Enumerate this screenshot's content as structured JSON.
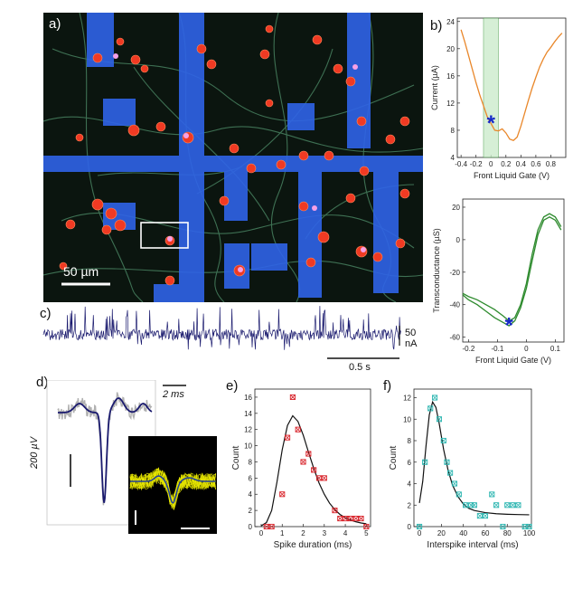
{
  "panels": {
    "a": {
      "label": "a)",
      "scalebar_text": "50 µm"
    },
    "b": {
      "label": "b)"
    },
    "c": {
      "label": "c)",
      "vscale_text": "50 nA",
      "hscale_text": "0.5 s"
    },
    "d": {
      "label": "d)",
      "time_scale_text": "2 ms",
      "voltage_scale_text": "200 µV"
    },
    "e": {
      "label": "e)"
    },
    "f": {
      "label": "f)"
    }
  },
  "colors": {
    "micrograph_bg": "#0b150f",
    "electrode_blue": "#2f63e8",
    "cell_red": "#f03a23",
    "neurite_green": "#4f8f6a",
    "iv_orange": "#e9872a",
    "gate_shade": "#cdeccd",
    "transconductance_green": "#2e8b2e",
    "marker_blue": "#1628c8",
    "trace_navy": "#1a1a6e",
    "scatter_red": "#d8232a",
    "scatter_teal": "#2bb5b0",
    "overlay_yellow": "#e6e600"
  },
  "chart_data": [
    {
      "id": "b-top",
      "type": "line",
      "xlabel": "Front Liquid Gate (V)",
      "ylabel": "Current (µA)",
      "xlim": [
        -0.45,
        1.0
      ],
      "ylim": [
        4,
        24.5
      ],
      "xticks": [
        -0.4,
        -0.2,
        0.0,
        0.2,
        0.4,
        0.6,
        0.8
      ],
      "yticks": [
        4,
        8,
        12,
        16,
        20,
        24
      ],
      "highlight_x": [
        -0.1,
        0.1
      ],
      "marker": {
        "x": 0.0,
        "y": 9.2,
        "symbol": "*"
      },
      "series": [
        {
          "x": [
            -0.4,
            -0.35,
            -0.3,
            -0.25,
            -0.2,
            -0.15,
            -0.1,
            -0.05,
            0.0,
            0.05,
            0.1,
            0.15,
            0.2,
            0.25,
            0.3,
            0.35,
            0.4,
            0.45,
            0.5,
            0.55,
            0.6,
            0.65,
            0.7,
            0.75,
            0.8,
            0.85,
            0.9,
            0.95
          ],
          "y": [
            22.8,
            21.0,
            19.0,
            17.0,
            15.0,
            13.2,
            11.6,
            10.0,
            9.0,
            8.0,
            7.9,
            8.2,
            7.6,
            6.7,
            6.5,
            7.0,
            8.6,
            10.5,
            12.4,
            14.2,
            15.8,
            17.3,
            18.5,
            19.5,
            20.2,
            21.0,
            21.7,
            22.3
          ]
        }
      ]
    },
    {
      "id": "b-bottom",
      "type": "line",
      "xlabel": "Front Liquid Gate (V)",
      "ylabel": "Transconductance (µS)",
      "xlim": [
        -0.22,
        0.13
      ],
      "ylim": [
        -63,
        25
      ],
      "xticks": [
        -0.2,
        -0.1,
        0.0,
        0.1
      ],
      "yticks": [
        -60,
        -40,
        -20,
        0,
        20
      ],
      "marker": {
        "x": -0.06,
        "y": -52,
        "symbol": "*"
      },
      "series": [
        {
          "x": [
            -0.22,
            -0.2,
            -0.17,
            -0.14,
            -0.11,
            -0.08,
            -0.06,
            -0.04,
            -0.02,
            0.0,
            0.02,
            0.04,
            0.06,
            0.08,
            0.1,
            0.12
          ],
          "y": [
            -34,
            -37,
            -40,
            -44,
            -48,
            -51,
            -53,
            -50,
            -42,
            -30,
            -13,
            3,
            12,
            14,
            12,
            6
          ]
        },
        {
          "x": [
            -0.22,
            -0.2,
            -0.17,
            -0.14,
            -0.11,
            -0.08,
            -0.06,
            -0.04,
            -0.02,
            0.0,
            0.02,
            0.04,
            0.06,
            0.08,
            0.1,
            0.12
          ],
          "y": [
            -33,
            -35,
            -37,
            -40,
            -43,
            -47,
            -50,
            -48,
            -40,
            -27,
            -9,
            6,
            14,
            16,
            14,
            8
          ]
        }
      ]
    },
    {
      "id": "e",
      "type": "scatter",
      "xlabel": "Spike duration (ms)",
      "ylabel": "Count",
      "xlim": [
        -0.3,
        5.2
      ],
      "ylim": [
        0,
        17
      ],
      "xticks": [
        0,
        1,
        2,
        3,
        4,
        5
      ],
      "yticks": [
        0,
        2,
        4,
        6,
        8,
        10,
        12,
        14,
        16
      ],
      "points": {
        "x": [
          0.25,
          0.5,
          1.0,
          1.25,
          1.5,
          1.75,
          2.0,
          2.25,
          2.5,
          2.75,
          3.0,
          3.5,
          3.75,
          4.0,
          4.25,
          4.5,
          4.75,
          5.0
        ],
        "y": [
          0,
          0,
          4,
          11,
          16,
          12,
          8,
          9,
          7,
          6,
          6,
          2,
          1,
          1,
          1,
          1,
          1,
          0
        ]
      },
      "fit": {
        "x": [
          0.0,
          0.25,
          0.5,
          0.75,
          1.0,
          1.25,
          1.5,
          1.75,
          2.0,
          2.25,
          2.5,
          2.75,
          3.0,
          3.25,
          3.5,
          3.75,
          4.0,
          4.25,
          4.5,
          4.75,
          5.0
        ],
        "y": [
          0.1,
          0.5,
          2.0,
          5.5,
          9.5,
          12.5,
          13.7,
          13.0,
          11.3,
          9.2,
          7.2,
          5.4,
          4.0,
          2.9,
          2.1,
          1.5,
          1.1,
          0.8,
          0.6,
          0.45,
          0.35
        ]
      }
    },
    {
      "id": "f",
      "type": "scatter",
      "xlabel": "Interspike interval (ms)",
      "ylabel": "Count",
      "xlim": [
        -5,
        102
      ],
      "ylim": [
        0,
        12.8
      ],
      "xticks": [
        0,
        20,
        40,
        60,
        80,
        100
      ],
      "yticks": [
        0,
        2,
        4,
        6,
        8,
        10,
        12
      ],
      "points": {
        "x": [
          0,
          5,
          10,
          14,
          18,
          22,
          25,
          28,
          32,
          36,
          42,
          47,
          50,
          55,
          60,
          66,
          70,
          76,
          80,
          85,
          90,
          96,
          100
        ],
        "y": [
          0,
          6,
          11,
          12,
          10,
          8,
          6,
          5,
          4,
          3,
          2,
          2,
          2,
          1,
          1,
          3,
          2,
          0,
          2,
          2,
          2,
          0,
          0
        ]
      },
      "fit": {
        "x": [
          0,
          3,
          6,
          9,
          12,
          15,
          18,
          22,
          26,
          30,
          35,
          40,
          45,
          50,
          60,
          70,
          80,
          90,
          100
        ],
        "y": [
          2.2,
          4.2,
          7.5,
          10.4,
          11.6,
          11.1,
          9.6,
          7.2,
          5.3,
          3.9,
          2.8,
          2.1,
          1.7,
          1.5,
          1.3,
          1.2,
          1.15,
          1.12,
          1.1
        ]
      }
    }
  ]
}
